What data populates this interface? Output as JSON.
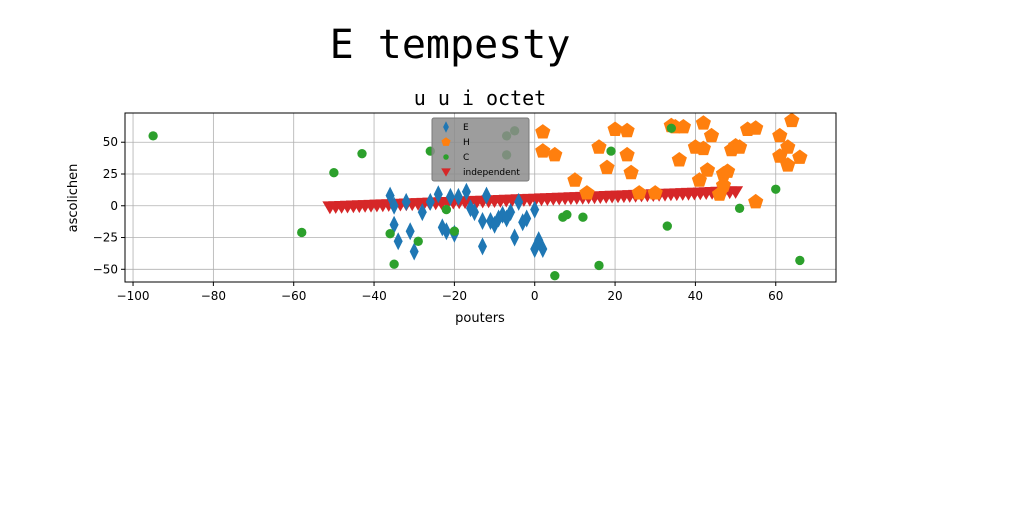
{
  "figure": {
    "suptitle": "E tempesty"
  },
  "chart_data": {
    "type": "scatter",
    "title": "u u i octet",
    "xlabel": "pouters",
    "ylabel": "ascolichen",
    "xlim": [
      -102,
      75
    ],
    "ylim": [
      -60,
      73
    ],
    "xticks": [
      -100,
      -80,
      -60,
      -40,
      -20,
      0,
      20,
      40,
      60
    ],
    "yticks": [
      -50,
      -25,
      0,
      25,
      50
    ],
    "grid": true,
    "legend_position": "top-center",
    "series": [
      {
        "name": "E",
        "marker": "diamond",
        "color": "#1f77b4",
        "x": [
          -36,
          -34,
          -35,
          -32,
          -30,
          -28,
          -26,
          -24,
          -23,
          -22,
          -20,
          -19,
          -17,
          -15,
          -13,
          -12,
          -11,
          -10,
          -8,
          -7,
          -5,
          -4,
          -3,
          -2,
          0,
          1,
          2,
          -35,
          -31,
          -21,
          -13,
          0,
          -6,
          -9,
          -16
        ],
        "y": [
          8,
          -28,
          -15,
          3,
          -36,
          -5,
          3,
          9,
          -17,
          -20,
          -22,
          7,
          11,
          -5,
          -32,
          8,
          -12,
          -15,
          -7,
          -10,
          -25,
          3,
          -13,
          -10,
          -34,
          -27,
          -34,
          0,
          -20,
          7,
          -12,
          -3,
          -5,
          -10,
          -2
        ]
      },
      {
        "name": "H",
        "marker": "pentagon",
        "color": "#ff7f0e",
        "x": [
          2,
          2,
          5,
          10,
          13,
          16,
          18,
          20,
          23,
          23,
          24,
          26,
          30,
          34,
          35,
          36,
          37,
          40,
          41,
          42,
          42,
          43,
          44,
          46,
          47,
          47,
          48,
          49,
          50,
          51,
          53,
          55,
          55,
          61,
          61,
          63,
          63,
          64,
          66
        ],
        "y": [
          58,
          43,
          40,
          20,
          10,
          46,
          30,
          60,
          59,
          40,
          26,
          10,
          10,
          63,
          62,
          36,
          62,
          46,
          20,
          65,
          45,
          28,
          55,
          9,
          25,
          16,
          27,
          44,
          47,
          46,
          60,
          61,
          3,
          39,
          55,
          32,
          46,
          67,
          38
        ]
      },
      {
        "name": "C",
        "marker": "circle",
        "color": "#2ca02c",
        "x": [
          -95,
          -58,
          -50,
          -43,
          -36,
          -35,
          -29,
          -26,
          -22,
          -20,
          -7,
          -5,
          -7,
          5,
          7,
          8,
          12,
          16,
          19,
          33,
          34,
          51,
          60,
          66
        ],
        "y": [
          55,
          -21,
          26,
          41,
          -22,
          -46,
          -28,
          43,
          -3,
          -20,
          55,
          59,
          40,
          -55,
          -9,
          -7,
          -9,
          -47,
          43,
          -16,
          61,
          -2,
          13,
          -43
        ]
      },
      {
        "name": "independent",
        "marker": "triangle-down",
        "color": "#d62728",
        "x_range": [
          -51,
          50
        ],
        "y_at_x_start": -1,
        "y_at_x_end": 11,
        "count": 70
      }
    ]
  }
}
